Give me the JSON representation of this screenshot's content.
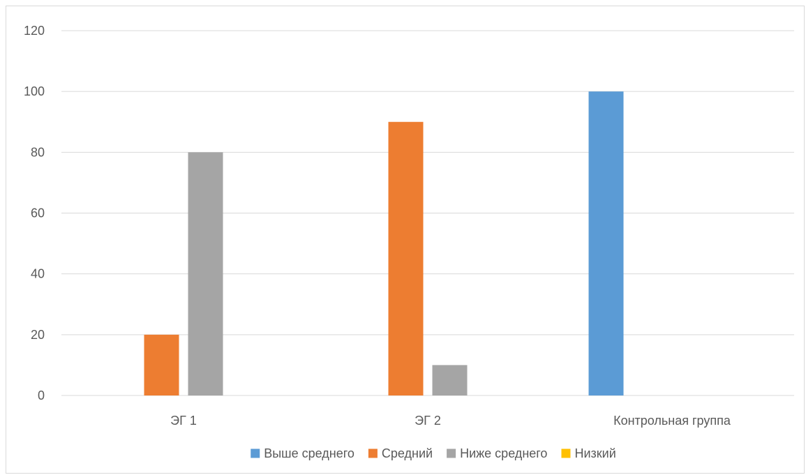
{
  "chart_data": {
    "type": "bar",
    "categories": [
      "ЭГ 1",
      "ЭГ 2",
      "Контрольная группа"
    ],
    "series": [
      {
        "name": "Выше среднего",
        "color": "#5B9BD5",
        "values": [
          0,
          0,
          100
        ]
      },
      {
        "name": "Средний",
        "color": "#ED7D31",
        "values": [
          20,
          90,
          0
        ]
      },
      {
        "name": "Ниже среднего",
        "color": "#A5A5A5",
        "values": [
          80,
          10,
          0
        ]
      },
      {
        "name": "Низкий",
        "color": "#FFC000",
        "values": [
          0,
          0,
          0
        ]
      }
    ],
    "ylim": [
      0,
      120
    ],
    "yticks": [
      0,
      20,
      40,
      60,
      80,
      100,
      120
    ],
    "grid": true,
    "legend_position": "bottom"
  }
}
